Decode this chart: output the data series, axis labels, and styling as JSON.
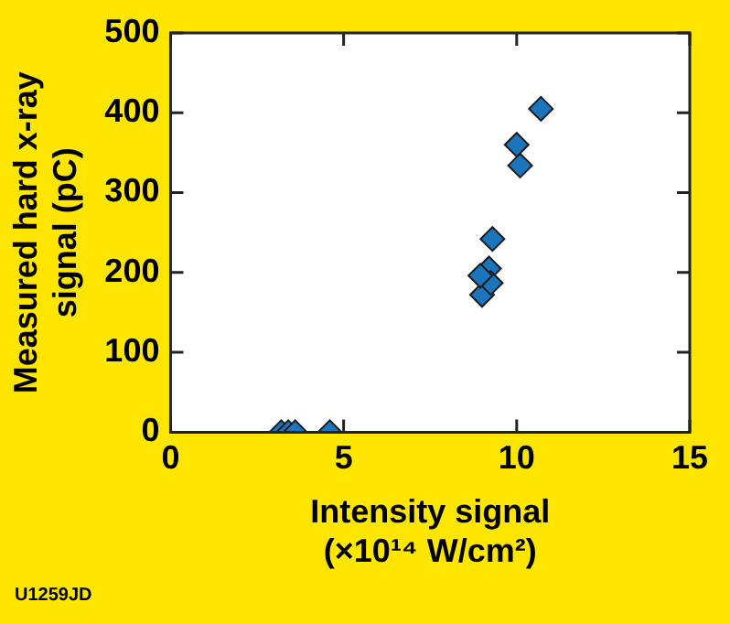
{
  "chart_data": {
    "type": "scatter",
    "xlabel": "Intensity signal (×10¹⁴ W/cm²)",
    "ylabel": "Measured hard x-ray signal (pC)",
    "annotations": [
      "U1259JD"
    ],
    "xlim": [
      0,
      15
    ],
    "xticks": [
      0,
      5,
      10,
      15
    ],
    "ylim": [
      0,
      500
    ],
    "yticks": [
      0,
      100,
      200,
      300,
      400,
      500
    ],
    "grid": false,
    "legend": false,
    "marker": "diamond",
    "series": [
      {
        "color": "#1a75bc",
        "x": [
          3.2,
          3.4,
          3.6,
          4.6,
          9.0,
          9.2,
          9.25,
          9.3,
          10.0,
          10.1,
          10.7,
          8.95
        ],
        "values": [
          0,
          0,
          0,
          0,
          172,
          205,
          187,
          242,
          360,
          334,
          405,
          196
        ]
      }
    ]
  }
}
